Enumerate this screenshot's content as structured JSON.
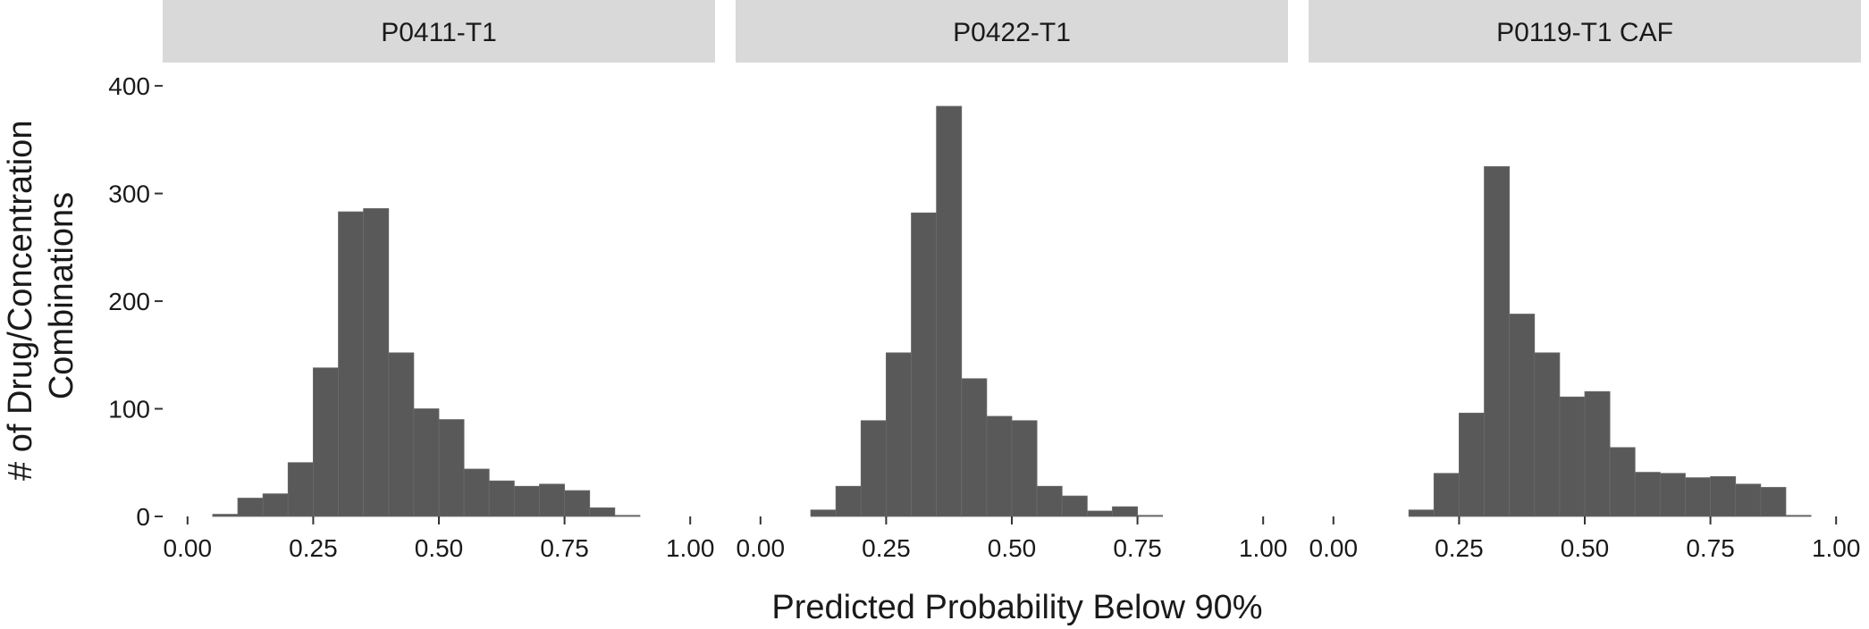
{
  "chart_data": {
    "type": "bar",
    "subtype": "faceted-histogram",
    "xlabel": "Predicted Probability Below 90%",
    "ylabel": "# of Drug/Concentration\nCombinations",
    "xlim": [
      0,
      1
    ],
    "ylim": [
      0,
      400
    ],
    "x_ticks": [
      0.0,
      0.25,
      0.5,
      0.75,
      1.0
    ],
    "x_tick_labels": [
      "0.00",
      "0.25",
      "0.50",
      "0.75",
      "1.00"
    ],
    "y_ticks": [
      0,
      100,
      200,
      300,
      400
    ],
    "y_tick_labels": [
      "0",
      "100",
      "200",
      "300",
      "400"
    ],
    "bin_width": 0.05,
    "grid": false,
    "bar_color": "#595959",
    "strip_color": "#d9d9d9",
    "panels": [
      {
        "name": "P0411-T1",
        "bins": [
          {
            "x": 0.05,
            "count": 2
          },
          {
            "x": 0.1,
            "count": 17
          },
          {
            "x": 0.15,
            "count": 21
          },
          {
            "x": 0.2,
            "count": 50
          },
          {
            "x": 0.25,
            "count": 138
          },
          {
            "x": 0.3,
            "count": 283
          },
          {
            "x": 0.35,
            "count": 286
          },
          {
            "x": 0.4,
            "count": 152
          },
          {
            "x": 0.45,
            "count": 100
          },
          {
            "x": 0.5,
            "count": 90
          },
          {
            "x": 0.55,
            "count": 44
          },
          {
            "x": 0.6,
            "count": 33
          },
          {
            "x": 0.65,
            "count": 28
          },
          {
            "x": 0.7,
            "count": 30
          },
          {
            "x": 0.75,
            "count": 24
          },
          {
            "x": 0.8,
            "count": 8
          },
          {
            "x": 0.85,
            "count": 1
          }
        ]
      },
      {
        "name": "P0422-T1",
        "bins": [
          {
            "x": 0.1,
            "count": 6
          },
          {
            "x": 0.15,
            "count": 28
          },
          {
            "x": 0.2,
            "count": 89
          },
          {
            "x": 0.25,
            "count": 152
          },
          {
            "x": 0.3,
            "count": 282
          },
          {
            "x": 0.35,
            "count": 381
          },
          {
            "x": 0.4,
            "count": 128
          },
          {
            "x": 0.45,
            "count": 93
          },
          {
            "x": 0.5,
            "count": 89
          },
          {
            "x": 0.55,
            "count": 28
          },
          {
            "x": 0.6,
            "count": 19
          },
          {
            "x": 0.65,
            "count": 5
          },
          {
            "x": 0.7,
            "count": 9
          },
          {
            "x": 0.75,
            "count": 1
          }
        ]
      },
      {
        "name": "P0119-T1 CAF",
        "bins": [
          {
            "x": 0.15,
            "count": 6
          },
          {
            "x": 0.2,
            "count": 40
          },
          {
            "x": 0.25,
            "count": 96
          },
          {
            "x": 0.3,
            "count": 325
          },
          {
            "x": 0.35,
            "count": 188
          },
          {
            "x": 0.4,
            "count": 152
          },
          {
            "x": 0.45,
            "count": 111
          },
          {
            "x": 0.5,
            "count": 116
          },
          {
            "x": 0.55,
            "count": 64
          },
          {
            "x": 0.6,
            "count": 41
          },
          {
            "x": 0.65,
            "count": 40
          },
          {
            "x": 0.7,
            "count": 36
          },
          {
            "x": 0.75,
            "count": 37
          },
          {
            "x": 0.8,
            "count": 30
          },
          {
            "x": 0.85,
            "count": 27
          },
          {
            "x": 0.9,
            "count": 1
          }
        ]
      }
    ]
  }
}
